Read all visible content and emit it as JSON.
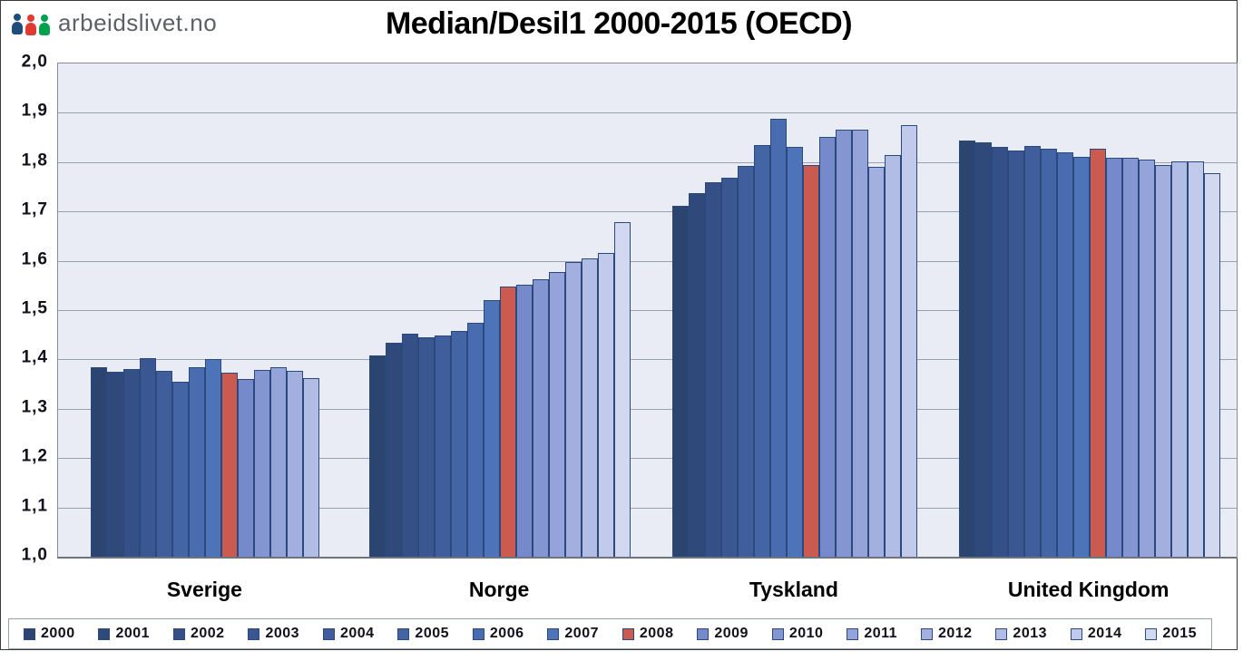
{
  "logo": {
    "text": "arbeidslivet.no"
  },
  "title": "Median/Desil1 2000-2015 (OECD)",
  "y_axis": {
    "ticks": [
      "2,0",
      "1,9",
      "1,8",
      "1,7",
      "1,6",
      "1,5",
      "1,4",
      "1,3",
      "1,2",
      "1,1",
      "1,0"
    ]
  },
  "legend": {
    "years": [
      "2000",
      "2001",
      "2002",
      "2003",
      "2004",
      "2005",
      "2006",
      "2007",
      "2008",
      "2009",
      "2010",
      "2011",
      "2012",
      "2013",
      "2014",
      "2015"
    ]
  },
  "colors": {
    "highlight_year": "2008",
    "bar_border": "#2C497E",
    "plot_background": "#E9ECF5",
    "gridline": "#9AA1AB",
    "year_colors": {
      "2000": "#2B4470",
      "2001": "#30497B",
      "2002": "#355086",
      "2003": "#3A5791",
      "2004": "#3F5E9B",
      "2005": "#4465A5",
      "2006": "#486CAF",
      "2007": "#4D73B9",
      "2008": "#CB5B50",
      "2009": "#7589CB",
      "2010": "#8496D2",
      "2011": "#94A3D9",
      "2012": "#A3B0DF",
      "2013": "#B2BDE5",
      "2014": "#C2CAEB",
      "2015": "#D2D8F0"
    }
  },
  "chart_data": {
    "type": "bar",
    "title": "Median/Desil1 2000-2015 (OECD)",
    "xlabel": "",
    "ylabel": "",
    "ylim": [
      1.0,
      2.0
    ],
    "ytick_step": 0.1,
    "grid": "horizontal",
    "legend_position": "bottom",
    "highlight_year": 2008,
    "groups": [
      {
        "name": "Sverige",
        "years": [
          2000,
          2001,
          2002,
          2003,
          2004,
          2005,
          2006,
          2007,
          2008,
          2009,
          2010,
          2011,
          2012,
          2013
        ],
        "values": [
          1.384,
          1.375,
          1.381,
          1.403,
          1.377,
          1.355,
          1.384,
          1.4,
          1.373,
          1.36,
          1.379,
          1.384,
          1.377,
          1.362
        ]
      },
      {
        "name": "Norge",
        "years": [
          2000,
          2001,
          2002,
          2003,
          2004,
          2005,
          2006,
          2007,
          2008,
          2009,
          2010,
          2011,
          2012,
          2013,
          2014,
          2015
        ],
        "values": [
          1.408,
          1.433,
          1.452,
          1.445,
          1.448,
          1.457,
          1.474,
          1.52,
          1.547,
          1.552,
          1.562,
          1.577,
          1.598,
          1.605,
          1.616,
          1.679
        ]
      },
      {
        "name": "Tyskland",
        "years": [
          2000,
          2001,
          2002,
          2003,
          2004,
          2005,
          2006,
          2007,
          2008,
          2009,
          2010,
          2011,
          2012,
          2013,
          2014
        ],
        "values": [
          1.711,
          1.737,
          1.76,
          1.768,
          1.792,
          1.835,
          1.888,
          1.831,
          1.794,
          1.851,
          1.866,
          1.866,
          1.791,
          1.814,
          1.875
        ]
      },
      {
        "name": "United Kingdom",
        "years": [
          2000,
          2001,
          2002,
          2003,
          2004,
          2005,
          2006,
          2007,
          2008,
          2009,
          2010,
          2011,
          2012,
          2013,
          2014,
          2015
        ],
        "values": [
          1.843,
          1.84,
          1.831,
          1.824,
          1.832,
          1.828,
          1.82,
          1.811,
          1.828,
          1.809,
          1.809,
          1.805,
          1.794,
          1.801,
          1.801,
          1.777
        ]
      }
    ]
  }
}
